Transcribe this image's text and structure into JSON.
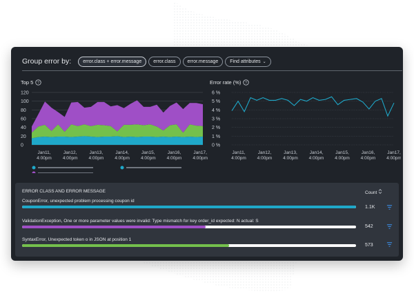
{
  "group_bar": {
    "label": "Group error by:",
    "options": [
      "error.class + error.message",
      "error.class",
      "error.message",
      "Find attributes"
    ],
    "active_index": 0
  },
  "top5": {
    "title": "Top 5",
    "icon": "info-icon",
    "y_ticks": [
      "120",
      "100",
      "80",
      "60",
      "40",
      "20",
      "0"
    ],
    "x_ticks": [
      [
        "Jan11,",
        "4:00pm"
      ],
      [
        "Jan12,",
        "4:00pm"
      ],
      [
        "Jan13,",
        "4:00pm"
      ],
      [
        "Jan14,",
        "4:00pm"
      ],
      [
        "Jan15,",
        "4:00pm"
      ],
      [
        "Jan16,",
        "4:00pm"
      ],
      [
        "Jan17,",
        "4:00pm"
      ]
    ]
  },
  "error_rate": {
    "title": "Error rate (%)",
    "icon": "info-icon",
    "y_ticks": [
      "6 %",
      "5 %",
      "4 %",
      "3 %",
      "2 %",
      "1 %",
      "0 %"
    ],
    "x_ticks": [
      [
        "Jan11,",
        "4:00pm"
      ],
      [
        "Jan12,",
        "4:00pm"
      ],
      [
        "Jan13,",
        "4:00pm"
      ],
      [
        "Jan14,",
        "4:00pm"
      ],
      [
        "Jan15,",
        "4:00pm"
      ],
      [
        "Jan16,",
        "4:00pm"
      ],
      [
        "Jan17,",
        "4:00pm"
      ]
    ]
  },
  "chart_data": [
    {
      "type": "area",
      "title": "Top 5",
      "stacked": true,
      "ylim": [
        0,
        120
      ],
      "x": [
        "Jan11, 4:00pm",
        "",
        "",
        "",
        "Jan12, 4:00pm",
        "",
        "",
        "",
        "Jan13, 4:00pm",
        "",
        "",
        "",
        "Jan14, 4:00pm",
        "",
        "",
        "",
        "Jan15, 4:00pm",
        "",
        "",
        "",
        "Jan16, 4:00pm",
        "",
        "",
        "",
        "Jan17, 4:00pm",
        "",
        ""
      ],
      "series": [
        {
          "color": "#1fa8c9",
          "values": [
            15,
            18,
            19,
            18,
            19,
            19,
            18,
            19,
            20,
            19,
            18,
            19,
            19,
            20,
            18,
            19,
            18,
            19,
            19,
            18,
            19,
            18,
            19,
            18,
            19,
            18,
            19
          ]
        },
        {
          "color": "#74c04c",
          "values": [
            13,
            24,
            27,
            14,
            28,
            11,
            29,
            24,
            27,
            24,
            28,
            26,
            24,
            11,
            28,
            27,
            29,
            26,
            28,
            24,
            14,
            27,
            28,
            10,
            28,
            26,
            24
          ]
        },
        {
          "color": "#9f4fc6",
          "values": [
            14,
            28,
            53,
            53,
            28,
            34,
            50,
            55,
            38,
            44,
            52,
            53,
            45,
            60,
            38,
            48,
            55,
            42,
            40,
            50,
            41,
            44,
            50,
            54,
            49,
            52,
            50
          ]
        }
      ],
      "legend": [
        {
          "color": "#1fa8c9"
        },
        {
          "color": "#1fa8c9"
        },
        {
          "color": "#9f4fc6"
        }
      ]
    },
    {
      "type": "line",
      "title": "Error rate (%)",
      "ylim": [
        0,
        6
      ],
      "color": "#1fa8c9",
      "x": [
        "Jan11, 4:00pm",
        "",
        "",
        "",
        "Jan12, 4:00pm",
        "",
        "",
        "",
        "Jan13, 4:00pm",
        "",
        "",
        "",
        "Jan14, 4:00pm",
        "",
        "",
        "",
        "Jan15, 4:00pm",
        "",
        "",
        "",
        "Jan16, 4:00pm",
        "",
        "",
        "",
        "Jan17, 4:00pm",
        "",
        ""
      ],
      "values": [
        3.9,
        5.0,
        3.8,
        5.4,
        5.1,
        5.4,
        5.1,
        5.1,
        5.3,
        5.1,
        4.5,
        5.2,
        5.0,
        5.4,
        5.1,
        5.2,
        5.5,
        4.6,
        5.1,
        5.2,
        5.3,
        4.9,
        4.1,
        5.0,
        5.3,
        3.3,
        4.8
      ]
    }
  ],
  "table": {
    "header_label": "ERROR CLASS AND ERROR MESSAGE",
    "header_count": "Count",
    "sort_icon": "sort-icon",
    "rows": [
      {
        "label": "CouponError, unexpected problem processing coupon id",
        "count": "1.1K",
        "fill": 1.0,
        "color": "#1fa8c9",
        "icon": "filter-icon"
      },
      {
        "label": "ValidationException, One or more parameter values were invalid: Type mismatch for key order_id expected: N actual: S",
        "count": "542",
        "fill": 0.55,
        "color": "#9f4fc6",
        "icon": "filter-icon"
      },
      {
        "label": "SyntaxError, Unexpected token o in JSON at position 1",
        "count": "573",
        "fill": 0.62,
        "color": "#74c04c",
        "icon": "filter-icon"
      }
    ]
  }
}
